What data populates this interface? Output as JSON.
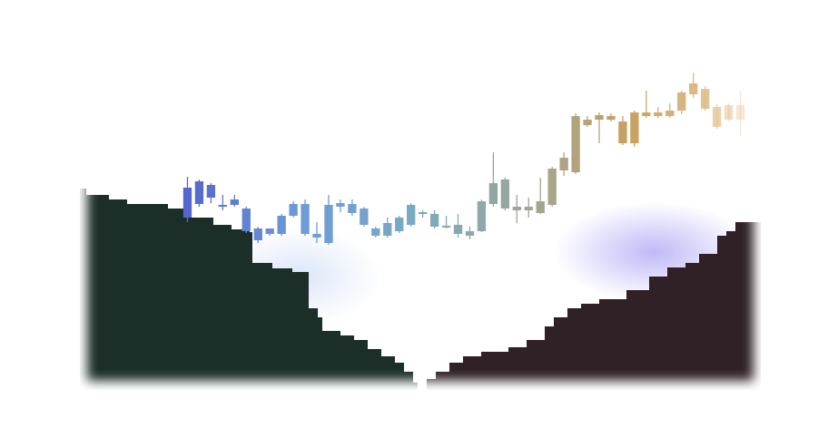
{
  "chart_data": [
    {
      "type": "depth",
      "xlim": [
        0,
        750
      ],
      "ylim": [
        0,
        350
      ],
      "series": [
        {
          "color": "#1b2e28",
          "x": [
            0,
            7,
            32,
            52,
            97,
            117,
            147,
            167,
            187,
            190,
            212,
            234,
            252,
            262,
            267,
            287,
            302,
            317,
            332,
            347,
            357,
            367,
            372
          ],
          "values": [
            222,
            215,
            210,
            205,
            200,
            190,
            182,
            177,
            174,
            140,
            134,
            130,
            90,
            80,
            65,
            60,
            55,
            45,
            37,
            30,
            20,
            8,
            0
          ]
        },
        {
          "color": "#2f2126",
          "x": [
            372,
            382,
            392,
            407,
            422,
            442,
            472,
            492,
            512,
            522,
            537,
            552,
            572,
            602,
            627,
            647,
            667,
            682,
            702,
            712,
            722,
            750
          ],
          "values": [
            0,
            12,
            20,
            30,
            37,
            42,
            47,
            55,
            70,
            80,
            90,
            95,
            100,
            110,
            125,
            135,
            140,
            150,
            170,
            175,
            185,
            185
          ]
        }
      ]
    },
    {
      "type": "candlestick",
      "ylim": [
        0,
        350
      ],
      "colors": [
        "#5566cc",
        "#6e9ad8",
        "#79a9c2",
        "#9aa79a",
        "#c9a060",
        "#e8caa0"
      ],
      "open": [
        190,
        230,
        226,
        204,
        210,
        200,
        178,
        178,
        192,
        205,
        205,
        172,
        204,
        206,
        205,
        200,
        178,
        184,
        190,
        204,
        196,
        194,
        181,
        182,
        175,
        208,
        228,
        232,
        202,
        202,
        208,
        244,
        256,
        302,
        298,
        303,
        302,
        296,
        306,
        306,
        306,
        308,
        328,
        338,
        332,
        312,
        314,
        314
      ],
      "high": [
        235,
        232,
        228,
        215,
        215,
        202,
        180,
        178,
        194,
        208,
        210,
        185,
        215,
        210,
        210,
        202,
        180,
        190,
        192,
        206,
        198,
        198,
        192,
        194,
        180,
        210,
        262,
        234,
        215,
        212,
        234,
        246,
        262,
        305,
        302,
        306,
        305,
        302,
        308,
        330,
        312,
        316,
        330,
        350,
        335,
        315,
        316,
        330
      ],
      "low": [
        185,
        202,
        206,
        198,
        202,
        173,
        162,
        170,
        170,
        190,
        170,
        162,
        160,
        196,
        192,
        180,
        168,
        168,
        173,
        180,
        190,
        178,
        178,
        168,
        166,
        174,
        202,
        198,
        184,
        190,
        194,
        202,
        236,
        238,
        290,
        272,
        296,
        270,
        268,
        300,
        300,
        300,
        304,
        322,
        308,
        288,
        296,
        280
      ],
      "close": [
        223,
        205,
        212,
        202,
        204,
        175,
        165,
        172,
        172,
        192,
        172,
        168,
        162,
        202,
        195,
        182,
        170,
        170,
        175,
        182,
        194,
        180,
        179,
        172,
        170,
        175,
        205,
        200,
        198,
        198,
        195,
        204,
        242,
        240,
        292,
        298,
        298,
        272,
        272,
        302,
        302,
        302,
        308,
        326,
        310,
        290,
        298,
        298
      ]
    }
  ]
}
